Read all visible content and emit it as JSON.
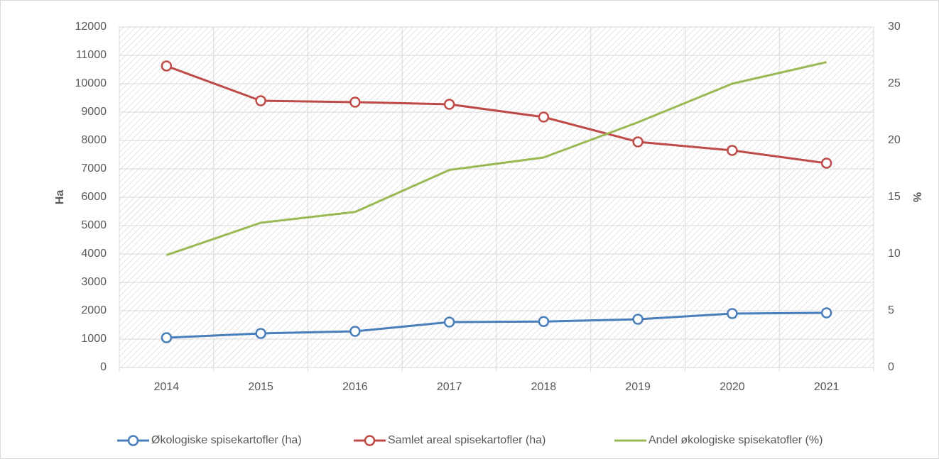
{
  "chart_data": {
    "type": "line",
    "categories": [
      "2014",
      "2015",
      "2016",
      "2017",
      "2018",
      "2019",
      "2020",
      "2021"
    ],
    "series": [
      {
        "name": "Økologiske spisekartofler (ha)",
        "color": "#4a7ebb",
        "markers": true,
        "values": [
          1050,
          1200,
          1275,
          1600,
          1620,
          1700,
          1900,
          1925
        ]
      },
      {
        "name": "Samlet areal spisekartofler (ha)",
        "color": "#be4b48",
        "markers": true,
        "values": [
          10625,
          9400,
          9350,
          9275,
          8825,
          7950,
          7650,
          7200
        ]
      },
      {
        "name": "Andel økologiske spisekatofler (%)",
        "color": "#98b954",
        "markers": false,
        "axis": "y2",
        "values": [
          9.9,
          12.75,
          13.7,
          17.4,
          18.5,
          21.6,
          25,
          26.9
        ]
      }
    ],
    "ylabel": "Ha",
    "y2label": "%",
    "ylim": [
      0,
      12000
    ],
    "yticks": [
      0,
      1000,
      2000,
      3000,
      4000,
      5000,
      6000,
      7000,
      8000,
      9000,
      10000,
      11000,
      12000
    ],
    "y2lim": [
      0,
      30
    ],
    "y2ticks": [
      0,
      5,
      10,
      15,
      20,
      25,
      30
    ],
    "grid": true,
    "legend": "bottom"
  }
}
